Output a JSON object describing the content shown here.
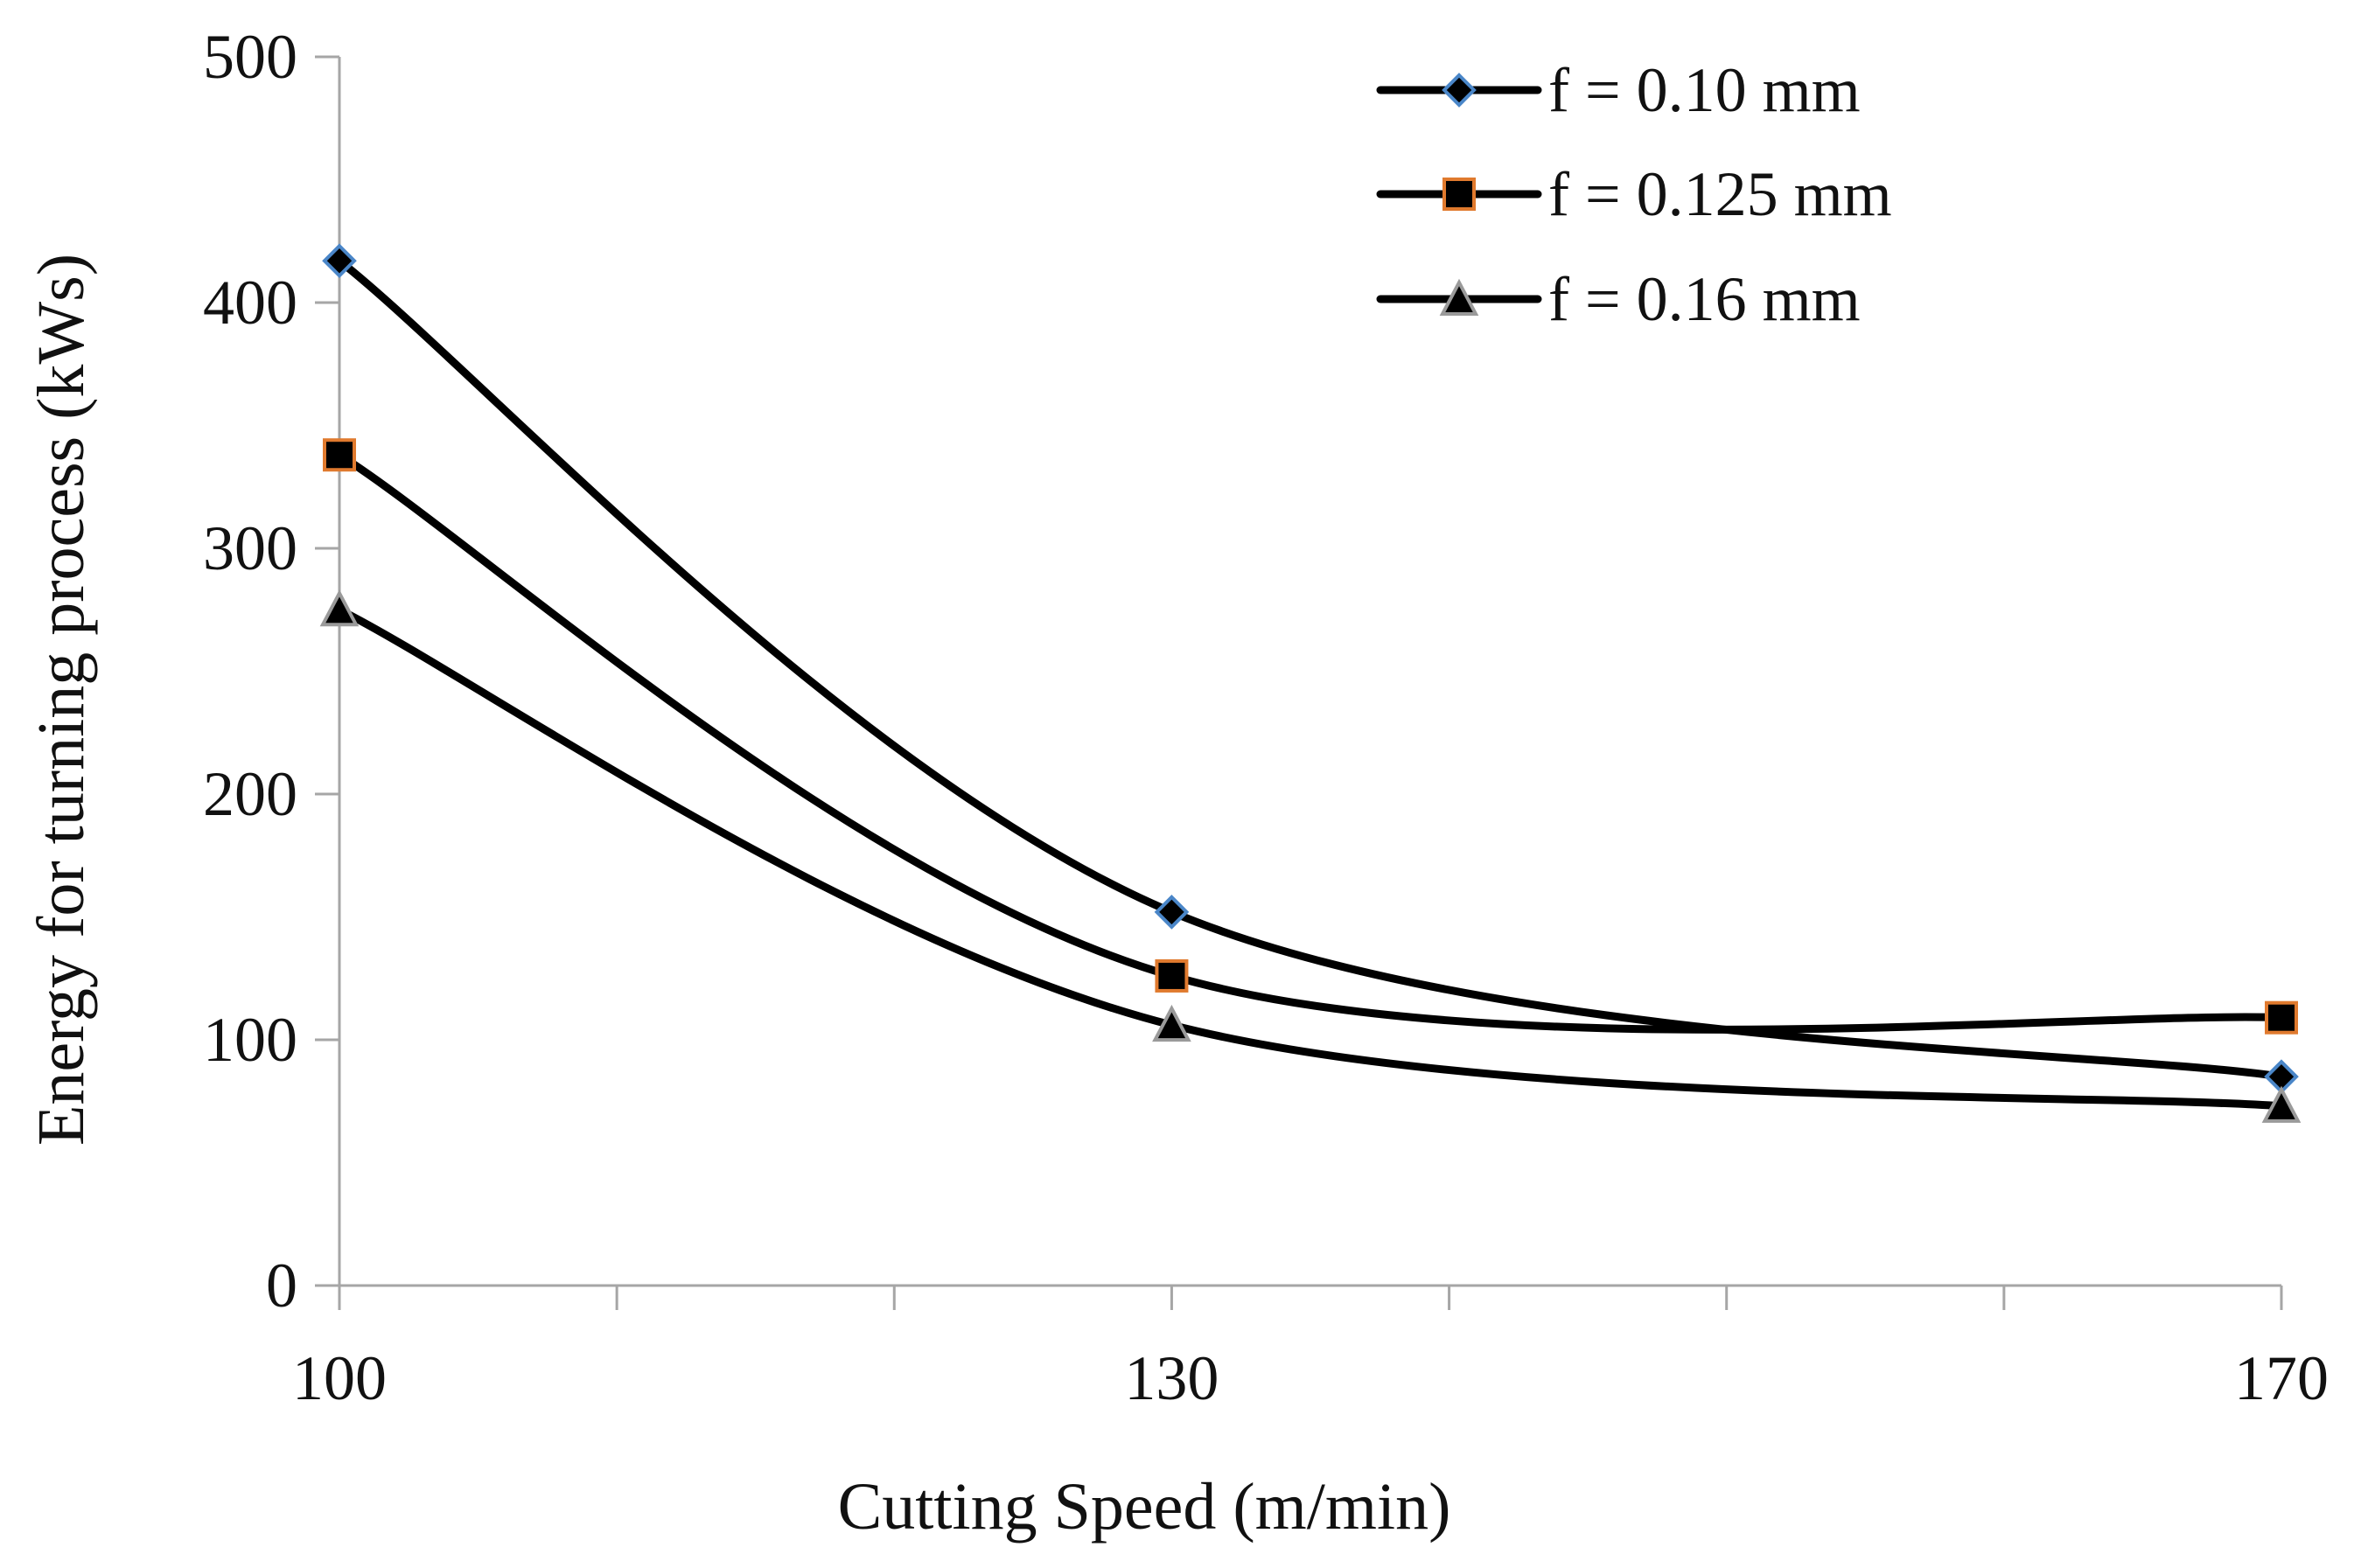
{
  "chart_data": {
    "type": "line",
    "smooth": true,
    "xlabel": "Cutting Speed (m/min)",
    "ylabel": "Energy for turning process (kWs)",
    "ylim": [
      0,
      500
    ],
    "yticks": [
      "0",
      "100",
      "200",
      "300",
      "400",
      "500"
    ],
    "categories": [
      "100",
      "130",
      "170"
    ],
    "legend_position": "top-right",
    "grid": false,
    "series": [
      {
        "name": "f = 0.10 mm",
        "marker": "diamond",
        "marker_edge": "#4a86c8",
        "values": [
          417,
          152,
          85
        ]
      },
      {
        "name": "f = 0.125 mm",
        "marker": "square",
        "marker_edge": "#e07a2e",
        "values": [
          338,
          126,
          109
        ]
      },
      {
        "name": "f = 0.16 mm",
        "marker": "triangle",
        "marker_edge": "#9a9a9a",
        "values": [
          275,
          106,
          73
        ]
      }
    ]
  }
}
